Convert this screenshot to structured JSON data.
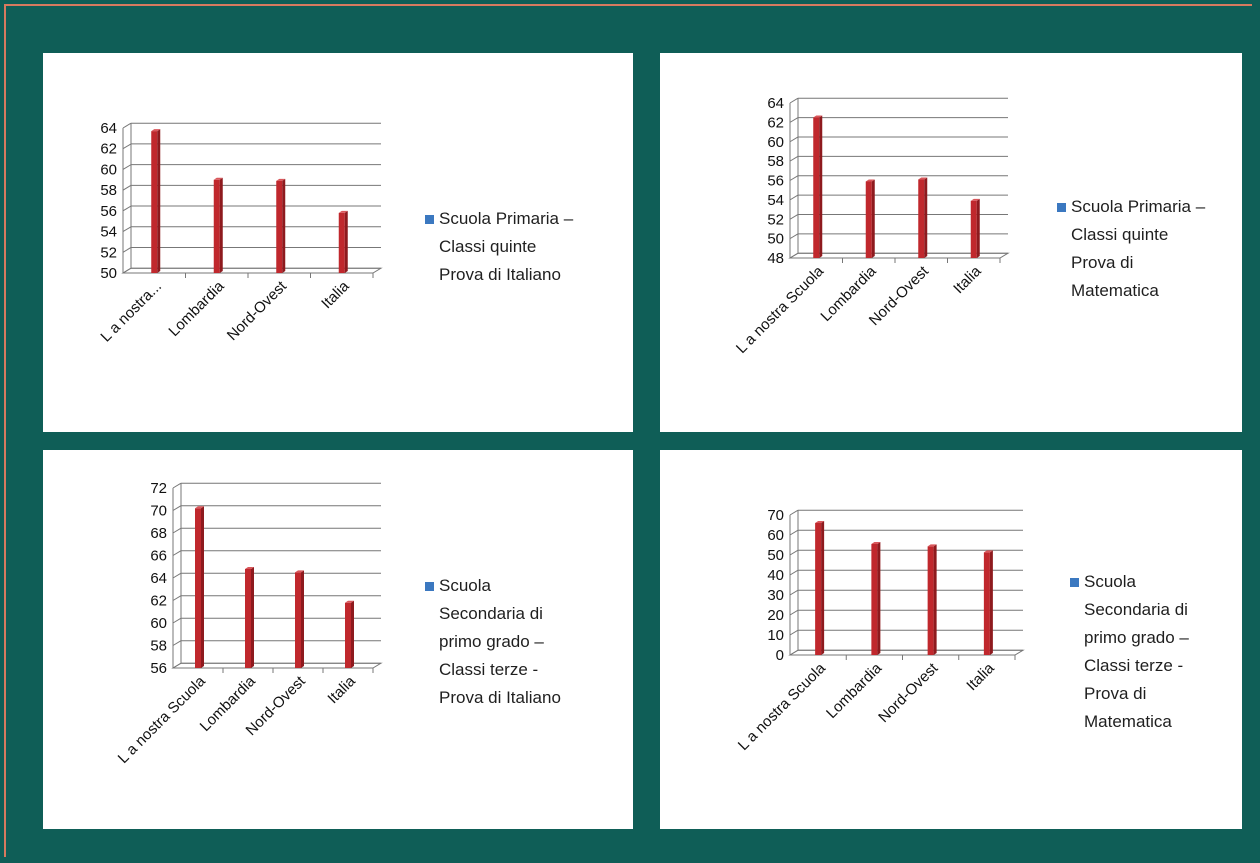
{
  "colors": {
    "background": "#0f5e57",
    "panel": "#ffffff",
    "bar": "#c0282d",
    "bar_dark": "#8e1a1e",
    "grid": "#777777",
    "legend_swatch": "#3b78c0"
  },
  "chart_data": [
    {
      "type": "bar",
      "categories": [
        "L a nostra...",
        "Lombardia",
        "Nord-Ovest",
        "Italia"
      ],
      "values": [
        63.7,
        59,
        58.9,
        55.8
      ],
      "ylim": [
        50,
        64
      ],
      "yticks": [
        "50",
        "52",
        "54",
        "56",
        "58",
        "60",
        "62",
        "64"
      ],
      "grid": true,
      "legend_position": "right",
      "legend": "Scuola Primaria –\nClassi quinte\nProva di Italiano"
    },
    {
      "type": "bar",
      "categories": [
        "L a nostra Scuola",
        "Lombardia",
        "Nord-Ovest",
        "Italia"
      ],
      "values": [
        62.5,
        55.9,
        56.1,
        53.9
      ],
      "ylim": [
        48,
        64
      ],
      "yticks": [
        "48",
        "50",
        "52",
        "54",
        "56",
        "58",
        "60",
        "62",
        "64"
      ],
      "grid": true,
      "legend_position": "right",
      "legend": "Scuola Primaria –\nClassi quinte\nProva di\nMatematica"
    },
    {
      "type": "bar",
      "categories": [
        "L a nostra Scuola",
        "Lombardia",
        "Nord-Ovest",
        "Italia"
      ],
      "values": [
        70.2,
        64.8,
        64.5,
        61.8
      ],
      "ylim": [
        56,
        72
      ],
      "yticks": [
        "56",
        "58",
        "60",
        "62",
        "64",
        "66",
        "68",
        "70",
        "72"
      ],
      "grid": true,
      "legend_position": "right",
      "legend": "Scuola\nSecondaria di\nprimo grado –\nClassi terze -\nProva di Italiano"
    },
    {
      "type": "bar",
      "categories": [
        "L a nostra Scuola",
        "Lombardia",
        "Nord-Ovest",
        "Italia"
      ],
      "values": [
        66,
        55.5,
        54.3,
        51.3
      ],
      "ylim": [
        0,
        70
      ],
      "yticks": [
        "0",
        "10",
        "20",
        "30",
        "40",
        "50",
        "60",
        "70"
      ],
      "grid": true,
      "legend_position": "right",
      "legend": "Scuola\nSecondaria di\nprimo grado –\nClassi terze -\nProva di\nMatematica"
    }
  ]
}
